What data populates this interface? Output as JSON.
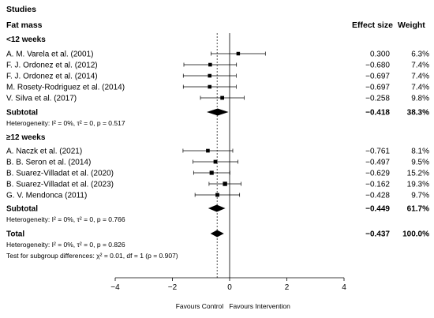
{
  "header": {
    "studies_label": "Studies",
    "outcome_label": "Fat mass",
    "effect_label": "Effect size",
    "weight_label": "Weight"
  },
  "chart_data": {
    "type": "forest",
    "x_axis": {
      "range": [
        -4,
        4
      ],
      "ticks": [
        "−4",
        "−2",
        "0",
        "2",
        "4"
      ],
      "tick_values": [
        -4,
        -2,
        0,
        2,
        4
      ],
      "left_label": "Favours Control",
      "right_label": "Favours Intervention"
    },
    "overall_effect_line": -0.437,
    "groups": [
      {
        "name": "<12 weeks",
        "studies": [
          {
            "label": "A. M. Varela et al. (2001)",
            "effect": 0.3,
            "effect_text": "0.300",
            "lo": -0.65,
            "hi": 1.25,
            "weight_text": "6.3%",
            "weight": 6.3
          },
          {
            "label": "F. J. Ordonez et al. (2012)",
            "effect": -0.68,
            "effect_text": "−0.680",
            "lo": -1.6,
            "hi": 0.24,
            "weight_text": "7.4%",
            "weight": 7.4
          },
          {
            "label": "F. J. Ordonez et al. (2014)",
            "effect": -0.697,
            "effect_text": "−0.697",
            "lo": -1.62,
            "hi": 0.23,
            "weight_text": "7.4%",
            "weight": 7.4
          },
          {
            "label": "M. Rosety-Rodriguez et al. (2014)",
            "effect": -0.697,
            "effect_text": "−0.697",
            "lo": -1.62,
            "hi": 0.23,
            "weight_text": "7.4%",
            "weight": 7.4
          },
          {
            "label": "V. Silva et al. (2017)",
            "effect": -0.258,
            "effect_text": "−0.258",
            "lo": -1.02,
            "hi": 0.51,
            "weight_text": "9.8%",
            "weight": 9.8
          }
        ],
        "subtotal": {
          "label": "Subtotal",
          "effect": -0.418,
          "effect_text": "−0.418",
          "lo": -0.8,
          "hi": -0.04,
          "weight_text": "38.3%"
        },
        "heterogeneity": "Heterogeneity: I² = 0%, τ² = 0, p = 0.517"
      },
      {
        "name": "≥12 weeks",
        "studies": [
          {
            "label": "A. Naczk et al. (2021)",
            "effect": -0.761,
            "effect_text": "−0.761",
            "lo": -1.63,
            "hi": 0.11,
            "weight_text": "8.1%",
            "weight": 8.1
          },
          {
            "label": "B. B. Seron et al. (2014)",
            "effect": -0.497,
            "effect_text": "−0.497",
            "lo": -1.28,
            "hi": 0.29,
            "weight_text": "9.5%",
            "weight": 9.5
          },
          {
            "label": "B. Suarez-Villadat et al. (2020)",
            "effect": -0.629,
            "effect_text": "−0.629",
            "lo": -1.26,
            "hi": 0.01,
            "weight_text": "15.2%",
            "weight": 15.2
          },
          {
            "label": "B. Suarez-Villadat et al. (2023)",
            "effect": -0.162,
            "effect_text": "−0.162",
            "lo": -0.72,
            "hi": 0.4,
            "weight_text": "19.3%",
            "weight": 19.3
          },
          {
            "label": "G. V. Mendonca (2011)",
            "effect": -0.428,
            "effect_text": "−0.428",
            "lo": -1.21,
            "hi": 0.35,
            "weight_text": "9.7%",
            "weight": 9.7
          }
        ],
        "subtotal": {
          "label": "Subtotal",
          "effect": -0.449,
          "effect_text": "−0.449",
          "lo": -0.75,
          "hi": -0.15,
          "weight_text": "61.7%"
        },
        "heterogeneity": "Heterogeneity: I² = 0%, τ² = 0, p = 0.766"
      }
    ],
    "total": {
      "label": "Total",
      "effect": -0.437,
      "effect_text": "−0.437",
      "lo": -0.67,
      "hi": -0.2,
      "weight_text": "100.0%",
      "heterogeneity": "Heterogeneity: I² = 0%, τ² = 0, p = 0.826",
      "subgroup_test": "Test for subgroup differences: χ² = 0.01, df = 1 (p = 0.907)"
    }
  }
}
